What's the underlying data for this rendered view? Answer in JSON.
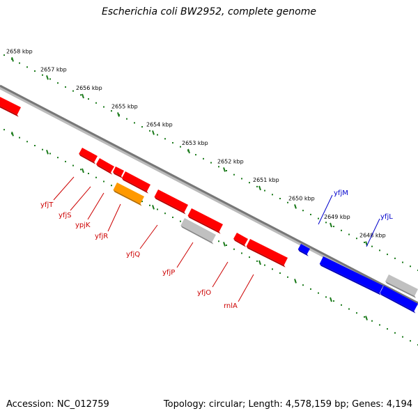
{
  "title": "Escherichia coli BW2952, complete genome",
  "footer": {
    "accession": "Accession: NC_012759",
    "summary": "Topology: circular; Length: 4,578,159 bp; Genes: 4,194"
  },
  "colors": {
    "background": "#ffffff",
    "backbone": "#777777",
    "tick": "#1a7a1a",
    "tick_label": "#000000",
    "forward_gene": "#ff0000",
    "reverse_gene": "#0000ff",
    "highlight_gene": "#ff9900",
    "other_gene": "#c0c0c0",
    "forward_label": "#cc0000",
    "reverse_label": "#0000cc"
  },
  "ticks": [
    "2658 kbp",
    "2657 kbp",
    "2656 kbp",
    "2655 kbp",
    "2654 kbp",
    "2653 kbp",
    "2652 kbp",
    "2651 kbp",
    "2650 kbp",
    "2649 kbp",
    "2648 kbp"
  ],
  "genes": [
    {
      "name": "",
      "strand": "forward",
      "type": "forward"
    },
    {
      "name": "yfjT",
      "strand": "forward",
      "type": "forward"
    },
    {
      "name": "yfjS",
      "strand": "forward",
      "type": "forward"
    },
    {
      "name": "ypjK",
      "strand": "forward",
      "type": "forward"
    },
    {
      "name": "yfjR",
      "strand": "forward",
      "type": "highlight"
    },
    {
      "name": "yfjQ",
      "strand": "forward",
      "type": "forward"
    },
    {
      "name": "yfjP",
      "strand": "forward",
      "type": "forward"
    },
    {
      "name": "",
      "strand": "forward",
      "type": "other"
    },
    {
      "name": "yfjO",
      "strand": "forward",
      "type": "forward"
    },
    {
      "name": "rnlA",
      "strand": "forward",
      "type": "forward"
    },
    {
      "name": "yfjM",
      "strand": "reverse",
      "type": "reverse"
    },
    {
      "name": "yfjL",
      "strand": "reverse",
      "type": "reverse"
    },
    {
      "name": "",
      "strand": "reverse",
      "type": "reverse"
    },
    {
      "name": "",
      "strand": "reverse",
      "type": "other"
    }
  ]
}
